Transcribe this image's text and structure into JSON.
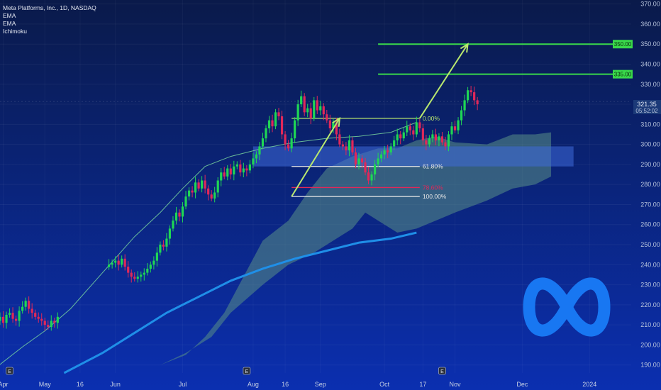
{
  "legend": {
    "symbol": "Meta Platforms, Inc., 1D, NASDAQ",
    "indicators": [
      "EMA",
      "EMA",
      "Ichimoku"
    ]
  },
  "price_readout": {
    "price": "321.35",
    "countdown": "05:52:02"
  },
  "event_marker": "E",
  "colors": {
    "bg_top": "#0a1a4a",
    "bg_bottom": "#0b2fb0",
    "candle_up": "#1fd655",
    "candle_down": "#e0285a",
    "ema_fast": "#7fe0a0",
    "ema_slow": "#1f8fe8",
    "cloud": "#5a8f86",
    "zone": "#3e6ad8",
    "target": "#39d84a",
    "arrow": "#b9e86e",
    "logo": "#1877f2"
  },
  "chart_data": {
    "type": "candlestick",
    "title": "Meta Platforms, Inc., 1D, NASDAQ",
    "ylim": [
      186,
      372
    ],
    "y_ticks": [
      190,
      200,
      210,
      220,
      230,
      240,
      250,
      260,
      270,
      280,
      290,
      300,
      310,
      320,
      330,
      340,
      350,
      360,
      370
    ],
    "x_ticks": [
      {
        "label": "Apr",
        "day": -1
      },
      {
        "label": "May",
        "day": 12
      },
      {
        "label": "16",
        "day": 23
      },
      {
        "label": "Jun",
        "day": 34
      },
      {
        "label": "Jul",
        "day": 55
      },
      {
        "label": "Aug",
        "day": 77
      },
      {
        "label": "16",
        "day": 87
      },
      {
        "label": "Sep",
        "day": 98
      },
      {
        "label": "Oct",
        "day": 118
      },
      {
        "label": "17",
        "day": 130
      },
      {
        "label": "Nov",
        "day": 140
      },
      {
        "label": "Dec",
        "day": 161
      },
      {
        "label": "2024",
        "day": 182
      }
    ],
    "xlim": [
      -2,
      195
    ],
    "closes": [
      212,
      214,
      211,
      215,
      216,
      213,
      212,
      217,
      219,
      222,
      218,
      216,
      214,
      213,
      212,
      210,
      209,
      212,
      211,
      214,
      240,
      241,
      242,
      240,
      243,
      239,
      236,
      234,
      233,
      234,
      235,
      236,
      238,
      240,
      242,
      246,
      250,
      249,
      253,
      258,
      262,
      266,
      264,
      269,
      274,
      277,
      276,
      281,
      278,
      282,
      278,
      275,
      273,
      276,
      282,
      286,
      284,
      288,
      285,
      289,
      290,
      286,
      288,
      287,
      290,
      293,
      295,
      299,
      303,
      308,
      312,
      309,
      316,
      314,
      305,
      300,
      298,
      303,
      312,
      320,
      324,
      316,
      318,
      313,
      322,
      317,
      319,
      315,
      312,
      308,
      311,
      305,
      300,
      299,
      297,
      302,
      296,
      290,
      293,
      291,
      286,
      282,
      285,
      290,
      293,
      295,
      297,
      296,
      299,
      302,
      305,
      303,
      306,
      309,
      307,
      305,
      311,
      308,
      302,
      300,
      303,
      305,
      302,
      304,
      301,
      299,
      305,
      309,
      307,
      312,
      317,
      322,
      327,
      326,
      322,
      320
    ],
    "open_day": -3,
    "gap_after": 19,
    "gap_days": 15,
    "ema_fast": [
      [
        -3,
        189
      ],
      [
        5,
        199
      ],
      [
        12,
        207
      ],
      [
        20,
        218
      ],
      [
        30,
        236
      ],
      [
        40,
        254
      ],
      [
        48,
        266
      ],
      [
        55,
        278
      ],
      [
        62,
        289
      ],
      [
        70,
        294
      ],
      [
        80,
        298
      ],
      [
        90,
        301
      ],
      [
        100,
        303
      ],
      [
        110,
        304
      ],
      [
        120,
        306
      ],
      [
        128,
        311
      ]
    ],
    "ema_slow": [
      [
        18,
        186
      ],
      [
        30,
        196
      ],
      [
        40,
        206
      ],
      [
        50,
        216
      ],
      [
        60,
        224
      ],
      [
        70,
        232
      ],
      [
        80,
        238
      ],
      [
        90,
        243
      ],
      [
        100,
        247
      ],
      [
        110,
        251
      ],
      [
        120,
        253
      ],
      [
        128,
        256
      ]
    ],
    "cloud_top": [
      [
        56,
        195
      ],
      [
        62,
        204
      ],
      [
        68,
        216
      ],
      [
        74,
        234
      ],
      [
        80,
        252
      ],
      [
        88,
        262
      ],
      [
        94,
        276
      ],
      [
        100,
        288
      ],
      [
        108,
        294
      ],
      [
        116,
        298
      ],
      [
        122,
        298
      ],
      [
        128,
        302
      ],
      [
        134,
        304
      ],
      [
        140,
        301
      ],
      [
        150,
        300
      ],
      [
        158,
        305
      ],
      [
        165,
        305
      ],
      [
        170,
        306
      ]
    ],
    "cloud_bottom": [
      [
        48,
        190
      ],
      [
        56,
        196
      ],
      [
        64,
        204
      ],
      [
        70,
        216
      ],
      [
        80,
        230
      ],
      [
        88,
        240
      ],
      [
        96,
        246
      ],
      [
        102,
        252
      ],
      [
        108,
        258
      ],
      [
        112,
        266
      ],
      [
        116,
        262
      ],
      [
        122,
        256
      ],
      [
        128,
        258
      ],
      [
        134,
        262
      ],
      [
        140,
        266
      ],
      [
        150,
        272
      ],
      [
        158,
        278
      ],
      [
        165,
        280
      ],
      [
        170,
        284
      ]
    ],
    "resistance_zone": [
      289,
      299
    ],
    "fib_levels": [
      {
        "label": "0.00%",
        "value": 313
      },
      {
        "label": "61.80%",
        "value": 289
      },
      {
        "label": "78.60%",
        "value": 278.5
      },
      {
        "label": "100.00%",
        "value": 274
      }
    ],
    "targets": [
      {
        "label": "335.00",
        "value": 335
      },
      {
        "label": "350.00",
        "value": 350
      }
    ],
    "arrows": [
      {
        "from": [
          89,
          274
        ],
        "to": [
          104,
          313
        ]
      },
      {
        "from": [
          129,
          313
        ],
        "to": [
          144,
          350
        ]
      }
    ]
  }
}
